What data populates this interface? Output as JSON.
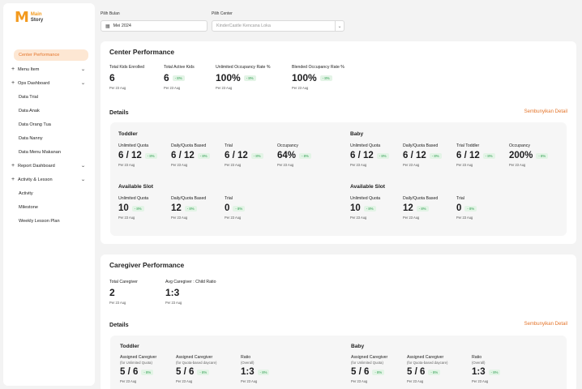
{
  "logo": {
    "mark": "M",
    "line1": "Main",
    "line2": "Story"
  },
  "sidebar": {
    "items": [
      {
        "label": "Center Performance",
        "type": "active"
      },
      {
        "label": "Menu Item",
        "type": "group"
      },
      {
        "label": "Ops Dashboard",
        "type": "group"
      },
      {
        "label": "Data Trial",
        "type": "child"
      },
      {
        "label": "Data Anak",
        "type": "child"
      },
      {
        "label": "Data Orang Tua",
        "type": "child"
      },
      {
        "label": "Data Nanny",
        "type": "child"
      },
      {
        "label": "Data Menu Makanan",
        "type": "child"
      },
      {
        "label": "Report Dashboard",
        "type": "group"
      },
      {
        "label": "Activity & Lesson",
        "type": "group"
      },
      {
        "label": "Activity",
        "type": "child"
      },
      {
        "label": "Milestone",
        "type": "child"
      },
      {
        "label": "Weekly Lesson Plan",
        "type": "child"
      }
    ]
  },
  "filters": {
    "month_label": "Pilih Bulan",
    "month_value": "Mei 2024",
    "center_label": "Pilih Center",
    "center_placeholder": "KinderCastle Kencana Loka"
  },
  "center": {
    "title": "Center Performance",
    "summary": [
      {
        "label": "Total Kids Enrolled",
        "value": "6",
        "badge": "",
        "date": "Per 23 Aug"
      },
      {
        "label": "Total Active Kids",
        "value": "6",
        "badge": "- 8%",
        "date": "Per 23 Aug"
      },
      {
        "label": "Unlimited Occupancy Rate %",
        "value": "100%",
        "badge": "- 8%",
        "date": "Per 23 Aug"
      },
      {
        "label": "Blended Occupancy Rate %",
        "value": "100%",
        "badge": "- 8%",
        "date": "Per 23 Aug"
      }
    ],
    "details_title": "Details",
    "hide_link": "Sembunyikan Detail",
    "toddler_title": "Toddler",
    "toddler": [
      {
        "label": "Unlimited Quota",
        "value": "6 / 12",
        "badge": "- 8%",
        "date": "Per 23 Aug"
      },
      {
        "label": "Daily/Quota Based",
        "value": "6 / 12",
        "badge": "- 8%",
        "date": "Per 23 Aug"
      },
      {
        "label": "Trial",
        "value": "6 / 12",
        "badge": "- 8%",
        "date": "Per 23 Aug"
      },
      {
        "label": "Occupancy",
        "value": "64%",
        "badge": "- 8%",
        "date": "Per 23 Aug"
      }
    ],
    "baby_title": "Baby",
    "baby": [
      {
        "label": "Unlimited Quota",
        "value": "6 / 12",
        "badge": "- 8%",
        "date": "Per 23 Aug"
      },
      {
        "label": "Daily/Quota Based",
        "value": "6 / 12",
        "badge": "- 8%",
        "date": "Per 23 Aug"
      },
      {
        "label": "Trial Toddler",
        "value": "6 / 12",
        "badge": "- 8%",
        "date": "Per 23 Aug"
      },
      {
        "label": "Occupancy",
        "value": "200%",
        "badge": "- 8%",
        "date": "Per 23 Aug"
      }
    ],
    "slot_title_left": "Available Slot",
    "slot_left": [
      {
        "label": "Unlimited Quota",
        "value": "10",
        "badge": "- 8%",
        "date": "Per 23 Aug"
      },
      {
        "label": "Daily/Quota Based",
        "value": "12",
        "badge": "- 8%",
        "date": "Per 23 Aug"
      },
      {
        "label": "Trial",
        "value": "0",
        "badge": "- 8%",
        "date": "Per 23 Aug"
      }
    ],
    "slot_title_right": "Available Slot",
    "slot_right": [
      {
        "label": "Unlimited Quota",
        "value": "10",
        "badge": "- 8%",
        "date": "Per 23 Aug"
      },
      {
        "label": "Daily/Quota Based",
        "value": "12",
        "badge": "- 8%",
        "date": "Per 23 Aug"
      },
      {
        "label": "Trial",
        "value": "0",
        "badge": "- 8%",
        "date": "Per 23 Aug"
      }
    ]
  },
  "caregiver": {
    "title": "Caregiver Performance",
    "summary": [
      {
        "label": "Total Caregiver",
        "value": "2",
        "badge": "",
        "date": "Per 23 Aug"
      },
      {
        "label": "Avg Caregiver : Child Ratio",
        "value": "1:3",
        "badge": "",
        "date": "Per 23 Aug"
      }
    ],
    "details_title": "Details",
    "hide_link": "Sembunyikan Detail",
    "toddler_title": "Toddler",
    "toddler": [
      {
        "label": "Assigned Caregiver",
        "sub": "(for Unlimited Quota)",
        "value": "5 / 6",
        "badge": "- 8%",
        "date": "Per 23 Aug"
      },
      {
        "label": "Assigned Caregiver",
        "sub": "(for Quota-based daycare)",
        "value": "5 / 6",
        "badge": "- 8%",
        "date": "Per 23 Aug"
      },
      {
        "label": "Ratio",
        "sub": "(Overall)",
        "value": "1:3",
        "badge": "- 8%",
        "date": "Per 23 Aug"
      }
    ],
    "baby_title": "Baby",
    "baby": [
      {
        "label": "Assigned Caregiver",
        "sub": "(for Unlimited Quota)",
        "value": "5 / 6",
        "badge": "- 8%",
        "date": "Per 23 Aug"
      },
      {
        "label": "Assigned Caregiver",
        "sub": "(for Quota-based daycare)",
        "value": "5 / 6",
        "badge": "- 8%",
        "date": "Per 23 Aug"
      },
      {
        "label": "Ratio",
        "sub": "(Overall)",
        "value": "1:3",
        "badge": "- 8%",
        "date": "Per 23 Aug"
      }
    ]
  },
  "colors": {
    "accent": "#e4742a",
    "badge_bg": "#e3f4e6",
    "badge_text": "#2e9d4f",
    "active_bg": "#fde7d3"
  }
}
